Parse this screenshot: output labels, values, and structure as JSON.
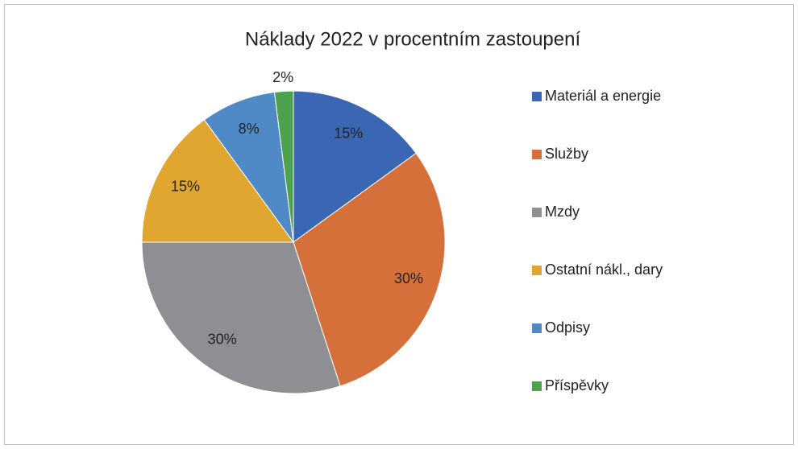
{
  "chart_data": {
    "type": "pie",
    "title": "Náklady 2022 v procentním zastoupení",
    "categories": [
      "Materiál a energie",
      "Služby",
      "Mzdy",
      "Ostatní nákl., dary",
      "Odpisy",
      "Příspěvky"
    ],
    "values": [
      15,
      30,
      30,
      15,
      8,
      2
    ],
    "value_labels": [
      "15%",
      "30%",
      "30%",
      "15%",
      "8%",
      "2%"
    ],
    "colors": [
      "#3a66b3",
      "#d6703a",
      "#8e8f93",
      "#e0a630",
      "#4f8ac6",
      "#4ea24e"
    ],
    "legend": "right"
  }
}
